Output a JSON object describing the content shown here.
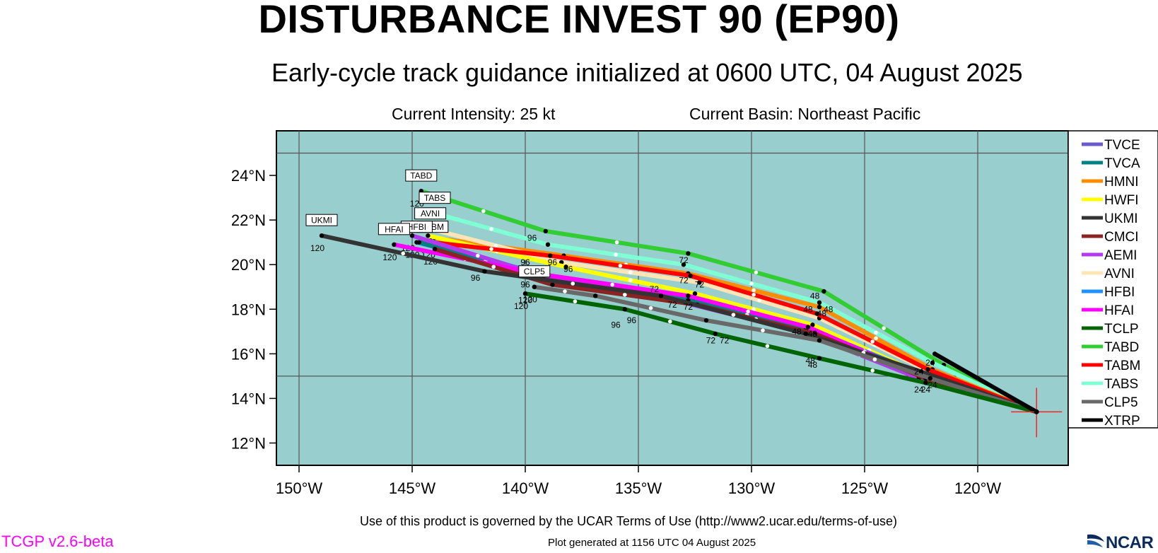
{
  "title": "DISTURBANCE INVEST 90 (EP90)",
  "subtitle": "Early-cycle track guidance initialized at 0600 UTC, 04 August 2025",
  "current_intensity": "Current Intensity: 25 kt",
  "current_basin": "Current Basin: Northeast Pacific",
  "terms": "Use of this product is governed by the UCAR Terms of Use (http://www2.ucar.edu/terms-of-use)",
  "version": "TCGP v2.6-beta",
  "generated": "Plot generated at 1156 UTC   04 August 2025",
  "logo_text": "NCAR",
  "map": {
    "lon_range": [
      -151,
      -116
    ],
    "lat_range": [
      11,
      26
    ],
    "background_color": "#98cece",
    "lon_ticks": [
      {
        "value": -150,
        "label": "150°W"
      },
      {
        "value": -145,
        "label": "145°W"
      },
      {
        "value": -140,
        "label": "140°W"
      },
      {
        "value": -135,
        "label": "135°W"
      },
      {
        "value": -130,
        "label": "130°W"
      },
      {
        "value": -125,
        "label": "125°W"
      },
      {
        "value": -120,
        "label": "120°W"
      }
    ],
    "lat_ticks": [
      {
        "value": 12,
        "label": "12°N"
      },
      {
        "value": 14,
        "label": "14°N"
      },
      {
        "value": 16,
        "label": "16°N"
      },
      {
        "value": 18,
        "label": "18°N"
      },
      {
        "value": 20,
        "label": "20°N"
      },
      {
        "value": 22,
        "label": "22°N"
      },
      {
        "value": 24,
        "label": "24°N"
      }
    ],
    "grid_lons": [
      -150,
      -145,
      -140,
      -135,
      -130,
      -125,
      -120
    ],
    "grid_lats": [
      15,
      25
    ],
    "initial_position": {
      "lon": -117.4,
      "lat": 13.4
    }
  },
  "models": [
    {
      "name": "TVCE",
      "color": "#6a5acd"
    },
    {
      "name": "TVCA",
      "color": "#008080"
    },
    {
      "name": "HMNI",
      "color": "#ff8c00"
    },
    {
      "name": "HWFI",
      "color": "#ffff00"
    },
    {
      "name": "UKMI",
      "color": "#333333"
    },
    {
      "name": "CMCI",
      "color": "#8b2323"
    },
    {
      "name": "AEMI",
      "color": "#b23aee"
    },
    {
      "name": "AVNI",
      "color": "#ffe4b5"
    },
    {
      "name": "HFBI",
      "color": "#1e90ff"
    },
    {
      "name": "HFAI",
      "color": "#ff00ff"
    },
    {
      "name": "TCLP",
      "color": "#006400"
    },
    {
      "name": "TABD",
      "color": "#32cd32"
    },
    {
      "name": "TABM",
      "color": "#ff0000"
    },
    {
      "name": "TABS",
      "color": "#7fffd4"
    },
    {
      "name": "CLP5",
      "color": "#696969"
    },
    {
      "name": "XTRP",
      "color": "#000000"
    }
  ],
  "tracks": [
    {
      "name": "TABD",
      "points": [
        [
          -117.4,
          13.4
        ],
        [
          -121.5,
          15.5
        ],
        [
          -126.8,
          18.8
        ],
        [
          -132.8,
          20.5
        ],
        [
          -139.1,
          21.5
        ],
        [
          -144.6,
          23.3
        ]
      ],
      "end_label": "120",
      "box": "TABD"
    },
    {
      "name": "TABS",
      "points": [
        [
          -117.4,
          13.4
        ],
        [
          -122.0,
          15.6
        ],
        [
          -127.0,
          18.3
        ],
        [
          -133.0,
          20.0
        ],
        [
          -139.0,
          20.9
        ],
        [
          -144.0,
          22.3
        ]
      ],
      "end_label": "120",
      "box": "TABS"
    },
    {
      "name": "HMNI",
      "points": [
        [
          -117.4,
          13.4
        ],
        [
          -122.0,
          15.3
        ],
        [
          -127.0,
          18.1
        ],
        [
          -132.8,
          19.6
        ],
        [
          -138.3,
          20.4
        ],
        [
          -144.0,
          21.2
        ]
      ],
      "end_label": "",
      "box": ""
    },
    {
      "name": "AVNI",
      "points": [
        [
          -117.4,
          13.4
        ],
        [
          -122.1,
          15.2
        ],
        [
          -127.0,
          17.6
        ],
        [
          -132.3,
          19.2
        ],
        [
          -138.4,
          20.1
        ],
        [
          -144.2,
          21.6
        ]
      ],
      "end_label": "120",
      "box": "AVNI"
    },
    {
      "name": "HWFI",
      "points": [
        [
          -117.4,
          13.4
        ],
        [
          -122.3,
          15.0
        ],
        [
          -127.3,
          17.3
        ],
        [
          -132.5,
          18.7
        ],
        [
          -138.2,
          19.9
        ],
        [
          -144.3,
          21.3
        ]
      ],
      "end_label": "",
      "box": ""
    },
    {
      "name": "TABM",
      "points": [
        [
          -117.4,
          13.4
        ],
        [
          -122.2,
          15.3
        ],
        [
          -127.1,
          17.8
        ],
        [
          -132.7,
          19.5
        ],
        [
          -138.9,
          20.4
        ],
        [
          -144.1,
          21.0
        ]
      ],
      "end_label": "120",
      "box": "TABM"
    },
    {
      "name": "HFBI",
      "points": [
        [
          -117.4,
          13.4
        ],
        [
          -122.5,
          15.1
        ],
        [
          -127.6,
          17.2
        ],
        [
          -132.8,
          18.5
        ],
        [
          -138.5,
          19.4
        ],
        [
          -144.8,
          21.0
        ]
      ],
      "end_label": "120",
      "box": "HFBI"
    },
    {
      "name": "TVCE",
      "points": [
        [
          -117.4,
          13.4
        ],
        [
          -122.4,
          15.0
        ],
        [
          -127.5,
          17.1
        ],
        [
          -132.6,
          18.4
        ],
        [
          -138.6,
          19.3
        ],
        [
          -144.6,
          21.0
        ]
      ],
      "end_label": "",
      "box": ""
    },
    {
      "name": "TVCA",
      "points": [
        [
          -117.4,
          13.4
        ],
        [
          -122.4,
          15.0
        ],
        [
          -127.6,
          17.1
        ],
        [
          -132.8,
          18.4
        ],
        [
          -138.8,
          19.3
        ],
        [
          -144.7,
          21.0
        ]
      ],
      "end_label": "",
      "box": ""
    },
    {
      "name": "AEMI",
      "points": [
        [
          -117.4,
          13.4
        ],
        [
          -122.6,
          14.9
        ],
        [
          -127.8,
          17.0
        ],
        [
          -133.0,
          18.3
        ],
        [
          -139.2,
          19.5
        ],
        [
          -145.0,
          21.3
        ]
      ],
      "end_label": "120",
      "box": ""
    },
    {
      "name": "HFAI",
      "points": [
        [
          -117.4,
          13.4
        ],
        [
          -122.5,
          15.0
        ],
        [
          -127.5,
          17.2
        ],
        [
          -132.8,
          18.6
        ],
        [
          -139.5,
          19.6
        ],
        [
          -145.8,
          20.9
        ]
      ],
      "end_label": "120",
      "box": "HFAI"
    },
    {
      "name": "CMCI",
      "points": [
        [
          -117.4,
          13.4
        ],
        [
          -122.3,
          14.9
        ],
        [
          -127.2,
          16.9
        ],
        [
          -132.4,
          18.2
        ],
        [
          -138.8,
          19.1
        ],
        [
          -144.0,
          20.7
        ]
      ],
      "end_label": "120",
      "box": ""
    },
    {
      "name": "UKMI",
      "points": [
        [
          -117.4,
          13.4
        ],
        [
          -122.5,
          15.2
        ],
        [
          -127.6,
          16.9
        ],
        [
          -134.0,
          18.6
        ],
        [
          -141.8,
          19.7
        ],
        [
          -149.0,
          21.3
        ]
      ],
      "end_label": "120",
      "box": "UKMI"
    },
    {
      "name": "CLP5",
      "points": [
        [
          -117.4,
          13.4
        ],
        [
          -122.1,
          14.9
        ],
        [
          -127.0,
          16.6
        ],
        [
          -132.0,
          17.5
        ],
        [
          -136.9,
          18.6
        ],
        [
          -139.6,
          19.0
        ]
      ],
      "end_label": "120",
      "box": "CLP5"
    },
    {
      "name": "TCLP",
      "points": [
        [
          -117.4,
          13.4
        ],
        [
          -122.3,
          14.7
        ],
        [
          -127.0,
          15.8
        ],
        [
          -131.6,
          16.9
        ],
        [
          -135.6,
          18.0
        ],
        [
          -140.0,
          18.7
        ]
      ],
      "end_label": "120",
      "box": ""
    },
    {
      "name": "XTRP",
      "points": [
        [
          -117.4,
          13.4
        ],
        [
          -121.9,
          16.0
        ]
      ],
      "end_label": "",
      "box": ""
    }
  ],
  "hour_labels": [
    {
      "text": "96",
      "lon": -139.7,
      "lat": 21.2
    },
    {
      "text": "72",
      "lon": -133.0,
      "lat": 20.2
    },
    {
      "text": "48",
      "lon": -127.2,
      "lat": 18.6
    },
    {
      "text": "96",
      "lon": -140.0,
      "lat": 20.1
    },
    {
      "text": "96",
      "lon": -138.8,
      "lat": 20.1
    },
    {
      "text": "96",
      "lon": -138.1,
      "lat": 19.8
    },
    {
      "text": "72",
      "lon": -133.0,
      "lat": 19.3
    },
    {
      "text": "72",
      "lon": -132.3,
      "lat": 19.1
    },
    {
      "text": "72",
      "lon": -134.3,
      "lat": 18.9
    },
    {
      "text": "48",
      "lon": -127.5,
      "lat": 18.0
    },
    {
      "text": "48",
      "lon": -126.6,
      "lat": 18.0
    },
    {
      "text": "48",
      "lon": -126.9,
      "lat": 17.8
    },
    {
      "text": "96",
      "lon": -142.2,
      "lat": 19.4
    },
    {
      "text": "96",
      "lon": -140.0,
      "lat": 19.1
    },
    {
      "text": "72",
      "lon": -133.5,
      "lat": 18.2
    },
    {
      "text": "72",
      "lon": -132.8,
      "lat": 18.1
    },
    {
      "text": "48",
      "lon": -128.0,
      "lat": 17.0
    },
    {
      "text": "48",
      "lon": -127.3,
      "lat": 16.9
    },
    {
      "text": "96",
      "lon": -136.0,
      "lat": 17.3
    },
    {
      "text": "96",
      "lon": -135.3,
      "lat": 17.5
    },
    {
      "text": "72",
      "lon": -131.8,
      "lat": 16.6
    },
    {
      "text": "72",
      "lon": -131.2,
      "lat": 16.6
    },
    {
      "text": "48",
      "lon": -127.4,
      "lat": 15.7
    },
    {
      "text": "48",
      "lon": -127.3,
      "lat": 15.5
    },
    {
      "text": "24",
      "lon": -122.6,
      "lat": 15.2
    },
    {
      "text": "24",
      "lon": -122.1,
      "lat": 15.6
    },
    {
      "text": "24",
      "lon": -122.6,
      "lat": 14.4
    },
    {
      "text": "24",
      "lon": -122.3,
      "lat": 14.4
    },
    {
      "text": "24",
      "lon": -122.0,
      "lat": 14.6
    },
    {
      "text": "120",
      "lon": -140.0,
      "lat": 18.4
    }
  ]
}
